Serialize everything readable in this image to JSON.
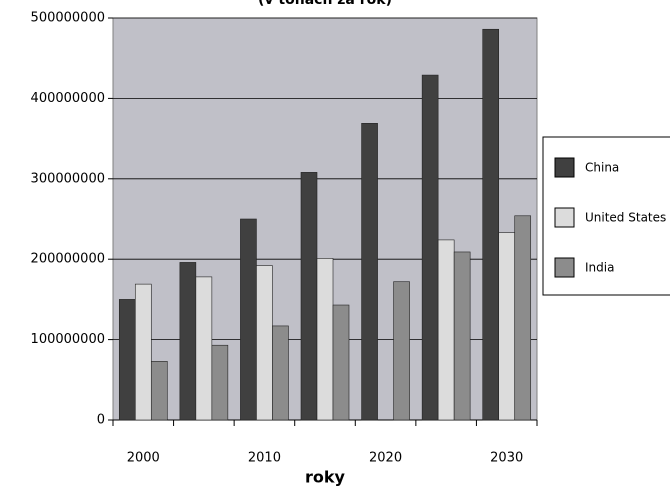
{
  "chart_data": {
    "type": "bar",
    "title": "(v tonách za rok)",
    "x_label": "roky",
    "categories": [
      "2000",
      null,
      "2010",
      null,
      "2020",
      null,
      "2030"
    ],
    "series": [
      {
        "name": "China",
        "color": "#404040",
        "values": [
          150000000,
          196000000,
          250000000,
          308000000,
          369000000,
          429000000,
          486000000
        ]
      },
      {
        "name": "United States",
        "color": "#dcdcdc",
        "values": [
          169000000,
          178000000,
          192000000,
          201000000,
          null,
          224000000,
          233000000
        ]
      },
      {
        "name": "India",
        "color": "#8c8c8c",
        "values": [
          73000000,
          93000000,
          117000000,
          143000000,
          172000000,
          209000000,
          254000000
        ]
      }
    ],
    "ylim": [
      0,
      500000000
    ],
    "yticks": [
      0,
      100000000,
      200000000,
      300000000,
      400000000,
      500000000
    ],
    "grid": true,
    "legend": "right"
  }
}
